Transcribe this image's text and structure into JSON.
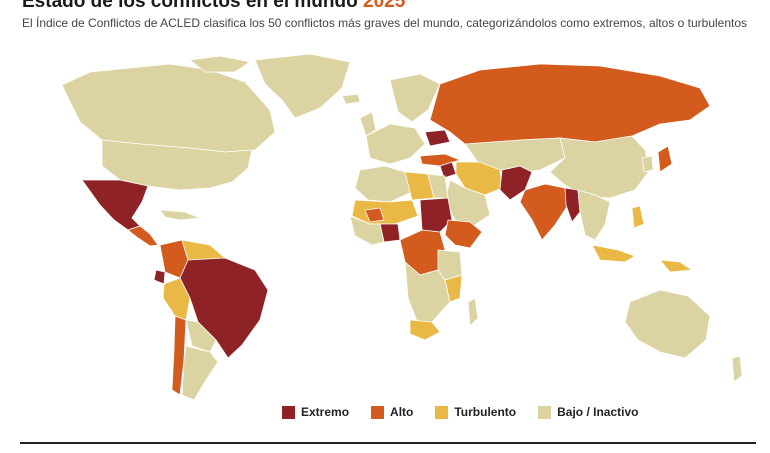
{
  "title": {
    "main": "Estado de los conflictos en el mundo",
    "year": "2025"
  },
  "subtitle": "El Índice de Conflictos de ACLED clasifica los 50 conflictos más graves del mundo, categorizándolos como extremos, altos o turbulentos",
  "colors": {
    "extremo": "#8e2227",
    "alto": "#d35b1e",
    "turbulento": "#e9b845",
    "bajo": "#dcd3a2",
    "border": "#ffffff",
    "ocean": "#ffffff"
  },
  "legend": [
    {
      "key": "extremo",
      "label": "Extremo"
    },
    {
      "key": "alto",
      "label": "Alto"
    },
    {
      "key": "turbulento",
      "label": "Turbulento"
    },
    {
      "key": "bajo",
      "label": "Bajo / Inactivo"
    }
  ]
}
